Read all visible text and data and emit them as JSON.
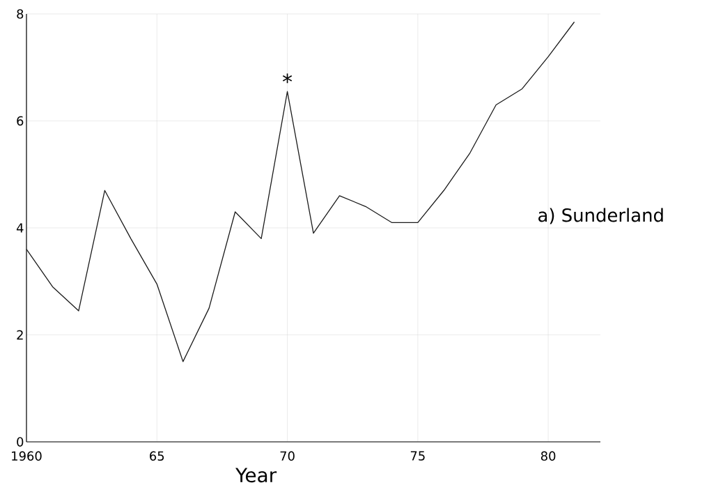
{
  "chart_data": {
    "type": "line",
    "xlabel": "Year",
    "x": [
      1960,
      1961,
      1962,
      1963,
      1964,
      1965,
      1966,
      1967,
      1968,
      1969,
      1970,
      1971,
      1972,
      1973,
      1974,
      1975,
      1976,
      1977,
      1978,
      1979,
      1980,
      1981
    ],
    "values": [
      3.6,
      2.9,
      2.45,
      4.7,
      3.8,
      2.95,
      1.5,
      2.5,
      4.3,
      3.8,
      6.55,
      3.9,
      4.6,
      4.4,
      4.1,
      4.1,
      4.7,
      5.4,
      6.3,
      6.6,
      7.2,
      7.85
    ],
    "color": "#1a1a1a",
    "xlim": [
      1960,
      1982
    ],
    "ylim": [
      0,
      8
    ],
    "xticks": [
      1960,
      {
        "value": 1965,
        "label": "65"
      },
      {
        "value": 1970,
        "label": "70"
      },
      {
        "value": 1975,
        "label": "75"
      },
      {
        "value": 1980,
        "label": "80"
      }
    ],
    "yticks": [
      0,
      2,
      4,
      6,
      8
    ],
    "grid": true,
    "marker": "none",
    "line_style": "solid",
    "annotations": [
      {
        "text": "*",
        "x": 1970,
        "y": 6.55
      },
      "a) Sunderland"
    ]
  }
}
